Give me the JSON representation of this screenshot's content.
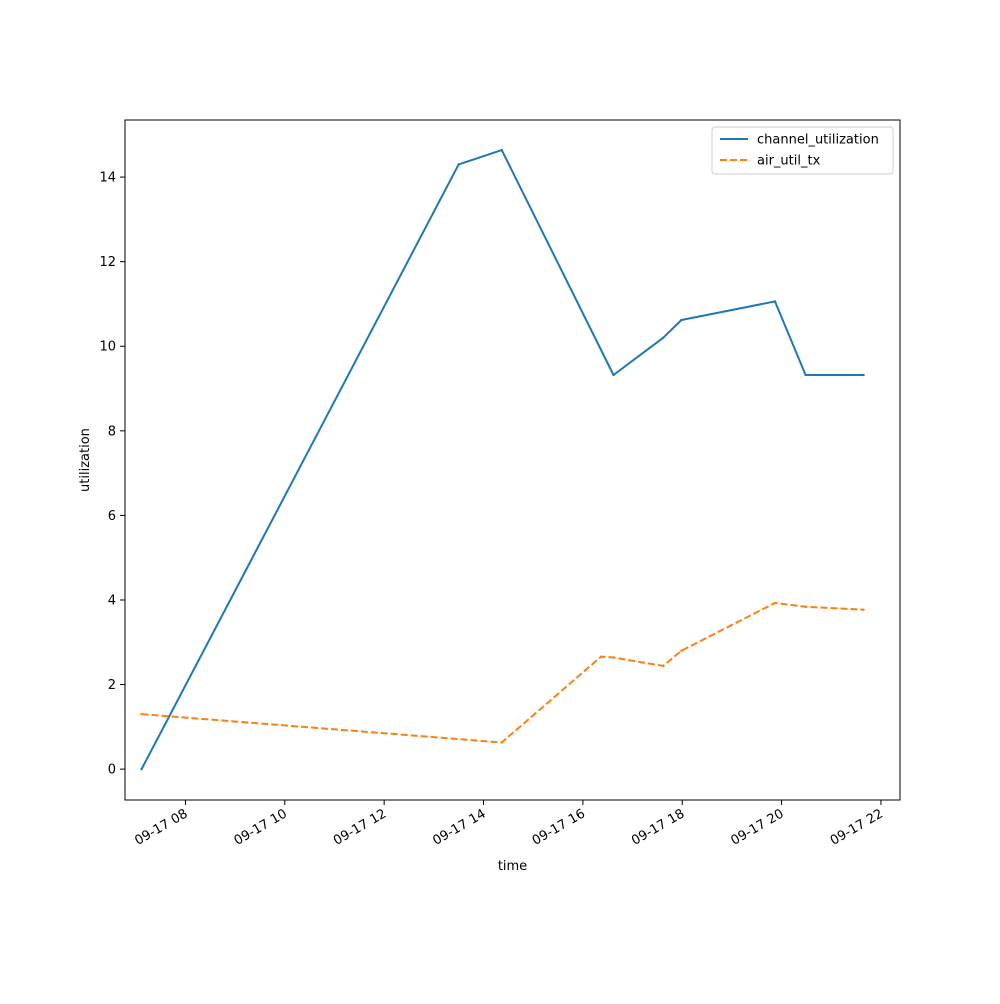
{
  "chart_data": {
    "type": "line",
    "title": "",
    "xlabel": "time",
    "ylabel": "utilization",
    "x_axis_type": "datetime",
    "xlim": [
      "09-17 06:47",
      "09-17 22:23"
    ],
    "ylim": [
      -0.73,
      15.35
    ],
    "x_ticks": [
      {
        "value": "09-17 08:00",
        "label": "09-17 08"
      },
      {
        "value": "09-17 10:00",
        "label": "09-17 10"
      },
      {
        "value": "09-17 12:00",
        "label": "09-17 12"
      },
      {
        "value": "09-17 14:00",
        "label": "09-17 14"
      },
      {
        "value": "09-17 16:00",
        "label": "09-17 16"
      },
      {
        "value": "09-17 18:00",
        "label": "09-17 18"
      },
      {
        "value": "09-17 20:00",
        "label": "09-17 20"
      },
      {
        "value": "09-17 22:00",
        "label": "09-17 22"
      }
    ],
    "y_ticks": [
      0,
      2,
      4,
      6,
      8,
      10,
      12,
      14
    ],
    "grid": false,
    "legend_position": "top-right",
    "series": [
      {
        "name": "channel_utilization",
        "color": "#1f77b4",
        "style": "solid",
        "points": [
          {
            "x": "09-17 07:07",
            "y": 0.0
          },
          {
            "x": "09-17 13:30",
            "y": 14.3
          },
          {
            "x": "09-17 14:22",
            "y": 14.64
          },
          {
            "x": "09-17 16:37",
            "y": 9.32
          },
          {
            "x": "09-17 17:37",
            "y": 10.2
          },
          {
            "x": "09-17 17:59",
            "y": 10.62
          },
          {
            "x": "09-17 19:52",
            "y": 11.06
          },
          {
            "x": "09-17 20:29",
            "y": 9.32
          },
          {
            "x": "09-17 21:39",
            "y": 9.32
          }
        ]
      },
      {
        "name": "air_util_tx",
        "color": "#ff7f0e",
        "style": "dashed",
        "points": [
          {
            "x": "09-17 07:07",
            "y": 1.3
          },
          {
            "x": "09-17 14:22",
            "y": 0.63
          },
          {
            "x": "09-17 16:22",
            "y": 2.66
          },
          {
            "x": "09-17 16:37",
            "y": 2.64
          },
          {
            "x": "09-17 17:37",
            "y": 2.44
          },
          {
            "x": "09-17 17:59",
            "y": 2.8
          },
          {
            "x": "09-17 19:52",
            "y": 3.93
          },
          {
            "x": "09-17 20:29",
            "y": 3.84
          },
          {
            "x": "09-17 21:39",
            "y": 3.77
          }
        ]
      }
    ]
  }
}
